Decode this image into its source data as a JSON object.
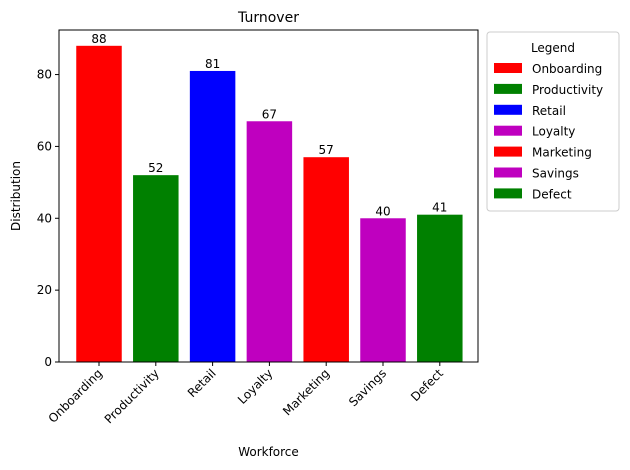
{
  "chart_data": {
    "type": "bar",
    "title": "Turnover",
    "xlabel": "Workforce",
    "ylabel": "Distribution",
    "categories": [
      "Onboarding",
      "Productivity",
      "Retail",
      "Loyalty",
      "Marketing",
      "Savings",
      "Defect"
    ],
    "values": [
      88,
      52,
      81,
      67,
      57,
      40,
      41
    ],
    "colors": [
      "#ff0000",
      "#008000",
      "#0000ff",
      "#bf00bf",
      "#ff0000",
      "#bf00bf",
      "#008000"
    ],
    "ylim": [
      0,
      92.4
    ],
    "yticks": [
      0,
      20,
      40,
      60,
      80
    ],
    "grid": false,
    "legend": {
      "title": "Legend",
      "placement": "outside-right-top",
      "entries": [
        "Onboarding",
        "Productivity",
        "Retail",
        "Loyalty",
        "Marketing",
        "Savings",
        "Defect"
      ]
    }
  }
}
